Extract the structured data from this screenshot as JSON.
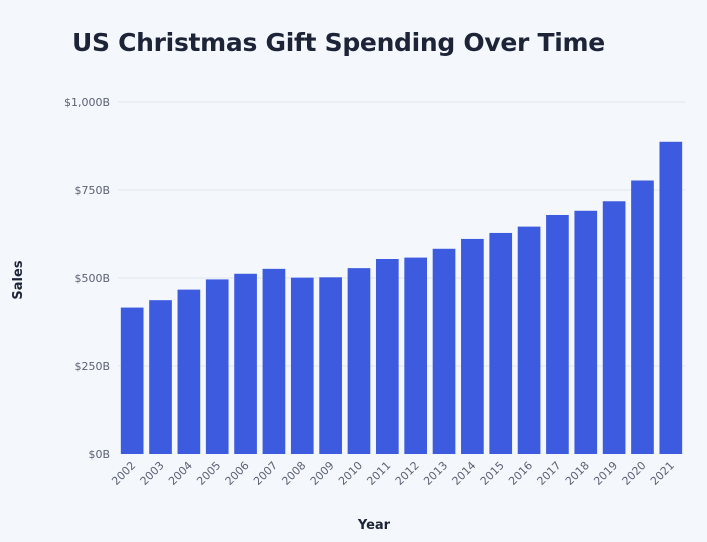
{
  "chart_data": {
    "type": "bar",
    "title": "US Christmas Gift Spending Over Time",
    "xlabel": "Year",
    "ylabel": "Sales",
    "categories": [
      "2002",
      "2003",
      "2004",
      "2005",
      "2006",
      "2007",
      "2008",
      "2009",
      "2010",
      "2011",
      "2012",
      "2013",
      "2014",
      "2015",
      "2016",
      "2017",
      "2018",
      "2019",
      "2020",
      "2021"
    ],
    "values": [
      416,
      437,
      467,
      496,
      512,
      526,
      501,
      502,
      528,
      554,
      558,
      583,
      611,
      628,
      646,
      679,
      691,
      718,
      777,
      887
    ],
    "ylim": [
      0,
      1000
    ],
    "yticks": [
      0,
      250,
      500,
      750,
      1000
    ],
    "ytick_labels": [
      "$0B",
      "$250B",
      "$500B",
      "$750B",
      "$1,000B"
    ],
    "grid": true,
    "bar_color": "#3d5bdf",
    "unit": "B"
  }
}
